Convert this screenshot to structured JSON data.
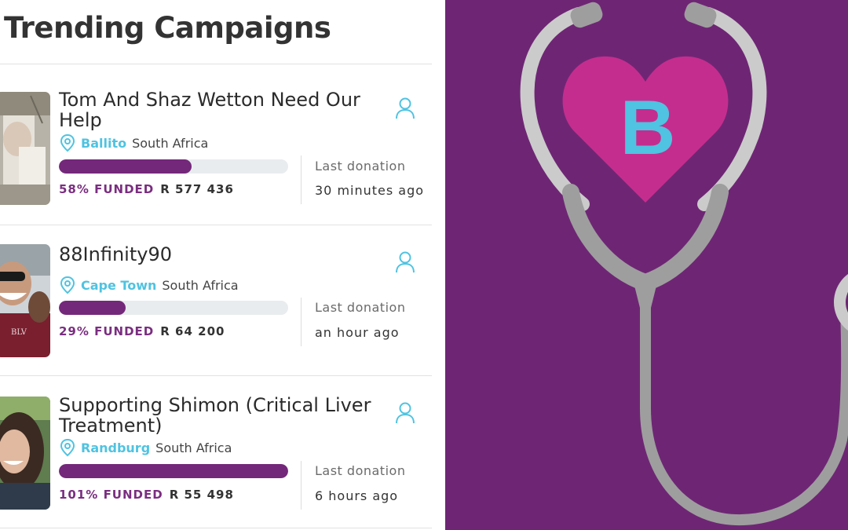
{
  "page": {
    "title": "Trending Campaigns"
  },
  "campaigns": [
    {
      "title": "Tom And Shaz Wetton Need Our Help",
      "city": "Ballito",
      "country": "South Africa",
      "progress": 0.58,
      "funded_label": "58% FUNDED",
      "amount": "R 577 436",
      "last_donation_label": "Last donation",
      "last_donation_time": "30 minutes ago"
    },
    {
      "title": "88Infinity90",
      "city": "Cape Town",
      "country": "South Africa",
      "progress": 0.29,
      "funded_label": "29% FUNDED",
      "amount": "R 64 200",
      "last_donation_label": "Last donation",
      "last_donation_time": "an hour ago"
    },
    {
      "title": "Supporting Shimon (Critical Liver Treatment)",
      "city": "Randburg",
      "country": "South Africa",
      "progress": 1.0,
      "funded_label": "101% FUNDED",
      "amount": "R 55 498",
      "last_donation_label": "Last donation",
      "last_donation_time": "6 hours ago"
    }
  ],
  "icons": {
    "location": "map-pin-icon",
    "user": "user-icon"
  },
  "brand": {
    "logo_letter": "B",
    "purple": "#6e2674",
    "heart": "#c42d8e",
    "accent_blue": "#4fc3e1",
    "bar_purple": "#74287a"
  }
}
